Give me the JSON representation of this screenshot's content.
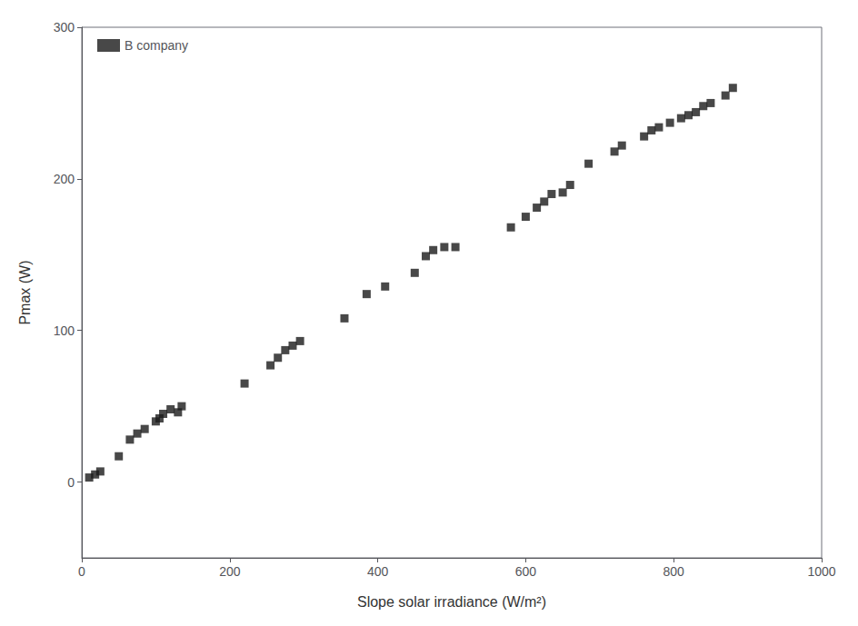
{
  "chart_data": {
    "type": "scatter",
    "x": [
      10,
      18,
      25,
      50,
      65,
      75,
      85,
      100,
      105,
      110,
      120,
      130,
      135,
      220,
      255,
      265,
      275,
      285,
      295,
      355,
      385,
      410,
      450,
      465,
      475,
      490,
      505,
      580,
      600,
      615,
      625,
      635,
      650,
      660,
      685,
      720,
      730,
      760,
      770,
      780,
      795,
      810,
      820,
      830,
      840,
      850,
      870,
      880
    ],
    "series": [
      {
        "name": "B company",
        "color": "#1a1a1a",
        "marker": "square",
        "values": [
          3,
          5,
          7,
          17,
          28,
          32,
          35,
          40,
          42,
          45,
          48,
          46,
          50,
          65,
          77,
          82,
          87,
          90,
          93,
          108,
          124,
          129,
          138,
          149,
          153,
          155,
          155,
          168,
          175,
          181,
          185,
          190,
          191,
          196,
          210,
          218,
          222,
          228,
          232,
          234,
          237,
          240,
          242,
          244,
          248,
          250,
          255,
          260
        ]
      }
    ],
    "xlabel": "Slope solar irradiance (W/m²)",
    "ylabel": "Pmax (W)",
    "xlim": [
      0,
      1000
    ],
    "ylim": [
      -50,
      300
    ],
    "xticks": [
      0,
      200,
      400,
      600,
      800,
      1000
    ],
    "yticks": [
      0,
      100,
      200,
      300
    ],
    "legend": "upper left",
    "grid": false
  }
}
